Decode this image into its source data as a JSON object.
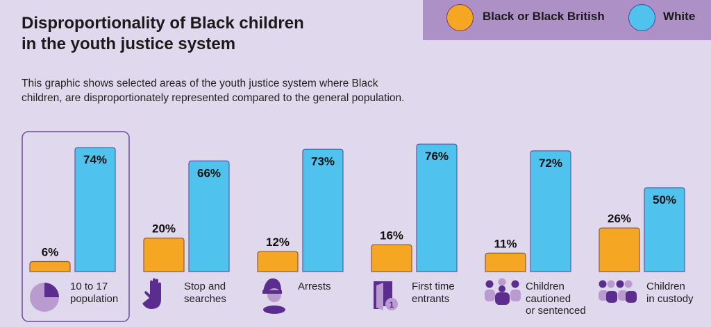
{
  "title_line1": "Disproportionality of Black children",
  "title_line2": "in the youth justice system",
  "subtitle_line1": "This graphic shows selected areas of the youth justice system where Black",
  "subtitle_line2": "children, are disproportionately represented compared to the general population.",
  "chart_data": {
    "type": "bar",
    "title": "Disproportionality of Black children in the youth justice system",
    "categories": [
      "10 to 17 population",
      "Stop and searches",
      "Arrests",
      "First time entrants",
      "Children cautioned or sentenced",
      "Children in custody"
    ],
    "category_lines": [
      [
        "10 to 17",
        "population"
      ],
      [
        "Stop and",
        "searches"
      ],
      [
        "Arrests"
      ],
      [
        "First time",
        "entrants"
      ],
      [
        "Children",
        "cautioned",
        "or sentenced"
      ],
      [
        "Children",
        "in custody"
      ]
    ],
    "category_icons": [
      "pie-chart-icon",
      "hand-icon",
      "police-officer-icon",
      "door-icon",
      "group-icon",
      "group-icon"
    ],
    "series": [
      {
        "name": "Black or Black British",
        "values": [
          6,
          20,
          12,
          16,
          11,
          26
        ],
        "color": "#f5a623"
      },
      {
        "name": "White",
        "values": [
          74,
          66,
          73,
          76,
          72,
          50
        ],
        "color": "#4fc3ee"
      }
    ],
    "value_suffix": "%",
    "highlighted_category": "10 to 17 population",
    "legend_position": "top-right",
    "grid": false
  }
}
